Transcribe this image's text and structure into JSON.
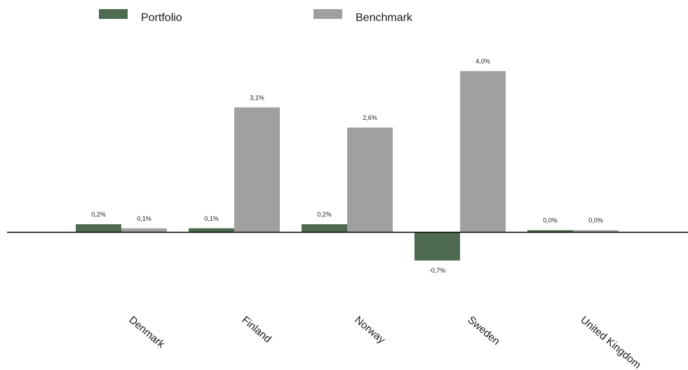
{
  "chart_data": {
    "type": "bar",
    "categories": [
      "Denmark",
      "Finland",
      "Norway",
      "Sweden",
      "United Kingdom"
    ],
    "series": [
      {
        "name": "Portfolio",
        "color": "#4e6b51",
        "values": [
          0.2,
          0.1,
          0.2,
          -0.7,
          0.0
        ],
        "labels": [
          "0,2%",
          "0,1%",
          "0,2%",
          "-0,7%",
          "0,0%"
        ]
      },
      {
        "name": "Benchmark",
        "color": "#a0a09e",
        "values": [
          0.1,
          3.1,
          2.6,
          4.0,
          0.0
        ],
        "labels": [
          "0,1%",
          "3,1%",
          "2,6%",
          "4,0%",
          "0,0%"
        ]
      }
    ],
    "title": "",
    "xlabel": "",
    "ylabel": "",
    "ylim": [
      -1.4,
      4.4
    ],
    "grid": false,
    "legend_position": "top-left",
    "axis_color": "#000000"
  }
}
